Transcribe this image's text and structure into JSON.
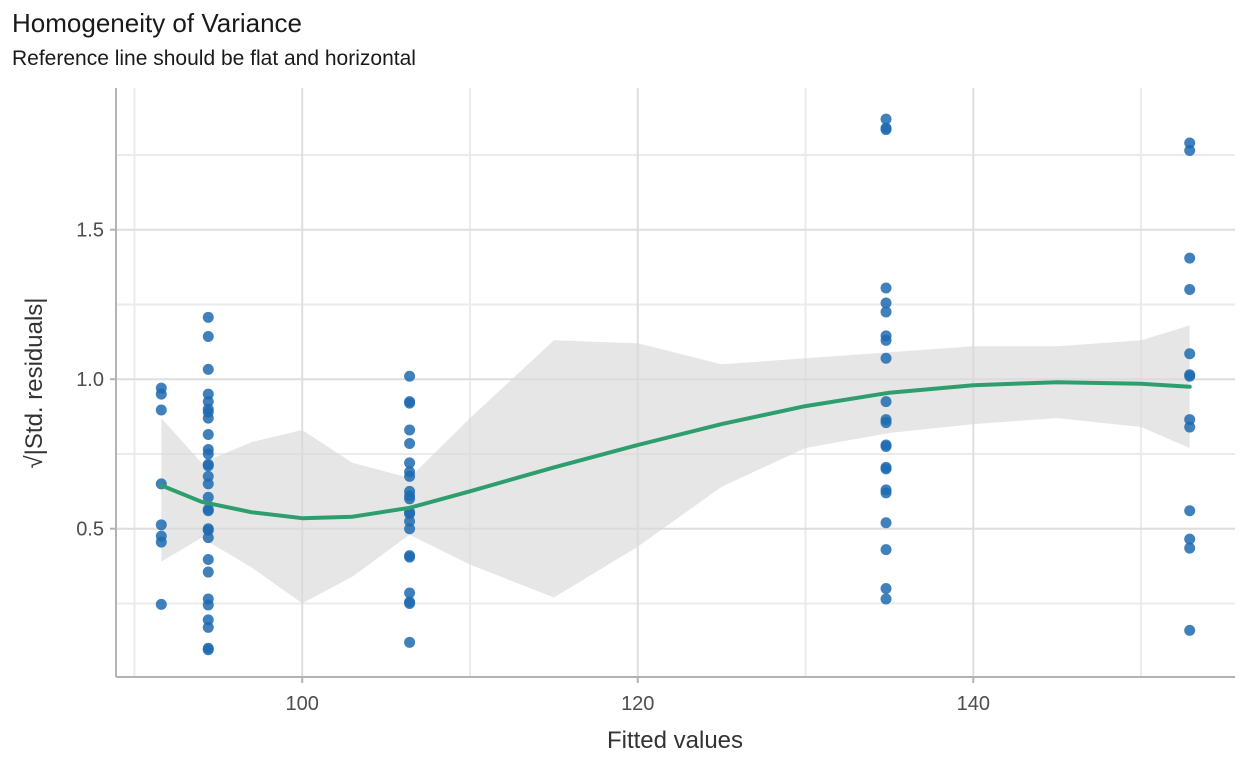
{
  "chart_data": {
    "type": "scatter",
    "title": "Homogeneity of Variance",
    "subtitle": "Reference line should be flat and horizontal",
    "xlabel": "Fitted values",
    "ylabel": "√|Std. residuals|",
    "xlim": [
      88.9,
      155.6
    ],
    "ylim": [
      0.004,
      1.974
    ],
    "x_ticks": [
      100,
      120,
      140
    ],
    "y_ticks": [
      0.5,
      1.0,
      1.5
    ],
    "y_tick_labels": [
      "0.5",
      "1.0",
      "1.5"
    ],
    "x_minor_ticks": [
      90,
      110,
      130,
      150
    ],
    "y_minor_ticks": [
      0.25,
      0.75,
      1.25,
      1.75
    ],
    "grid": true,
    "colors": {
      "points": "#1f6bb0",
      "smooth": "#2e9e6e",
      "band": "#d9d9d9"
    },
    "points": [
      {
        "x": 91.6,
        "y": [
          0.97,
          0.95,
          0.897,
          0.65,
          0.513,
          0.475,
          0.455,
          0.247
        ]
      },
      {
        "x": 94.4,
        "y": [
          1.207,
          1.143,
          1.033,
          0.95,
          0.925,
          0.9,
          0.89,
          0.87,
          0.815,
          0.765,
          0.75,
          0.715,
          0.71,
          0.675,
          0.65,
          0.605,
          0.565,
          0.56,
          0.5,
          0.495,
          0.47,
          0.397,
          0.355,
          0.265,
          0.245,
          0.195,
          0.17,
          0.1,
          0.095
        ]
      },
      {
        "x": 106.4,
        "y": [
          1.01,
          0.925,
          0.92,
          0.83,
          0.785,
          0.72,
          0.69,
          0.675,
          0.625,
          0.61,
          0.6,
          0.555,
          0.55,
          0.525,
          0.5,
          0.41,
          0.405,
          0.285,
          0.255,
          0.25,
          0.12
        ]
      },
      {
        "x": 134.8,
        "y": [
          1.87,
          1.84,
          1.835,
          1.305,
          1.255,
          1.225,
          1.145,
          1.13,
          1.07,
          0.925,
          0.865,
          0.855,
          0.78,
          0.775,
          0.705,
          0.7,
          0.63,
          0.62,
          0.52,
          0.43,
          0.3,
          0.265
        ]
      },
      {
        "x": 152.9,
        "y": [
          1.79,
          1.765,
          1.405,
          1.3,
          1.085,
          1.015,
          1.01,
          0.865,
          0.84,
          0.56,
          0.465,
          0.435,
          0.16
        ]
      }
    ],
    "smooth": {
      "x": [
        91.6,
        94,
        97,
        100,
        103,
        106.4,
        110,
        115,
        120,
        125,
        130,
        135,
        140,
        145,
        150,
        152.9
      ],
      "y": [
        0.645,
        0.59,
        0.555,
        0.535,
        0.54,
        0.57,
        0.625,
        0.705,
        0.78,
        0.85,
        0.91,
        0.955,
        0.98,
        0.99,
        0.985,
        0.975
      ],
      "lower": [
        0.39,
        0.47,
        0.37,
        0.25,
        0.34,
        0.48,
        0.38,
        0.27,
        0.44,
        0.64,
        0.77,
        0.82,
        0.85,
        0.87,
        0.84,
        0.77
      ],
      "upper": [
        0.87,
        0.72,
        0.79,
        0.83,
        0.72,
        0.67,
        0.87,
        1.13,
        1.12,
        1.05,
        1.07,
        1.09,
        1.11,
        1.11,
        1.13,
        1.18
      ]
    }
  }
}
